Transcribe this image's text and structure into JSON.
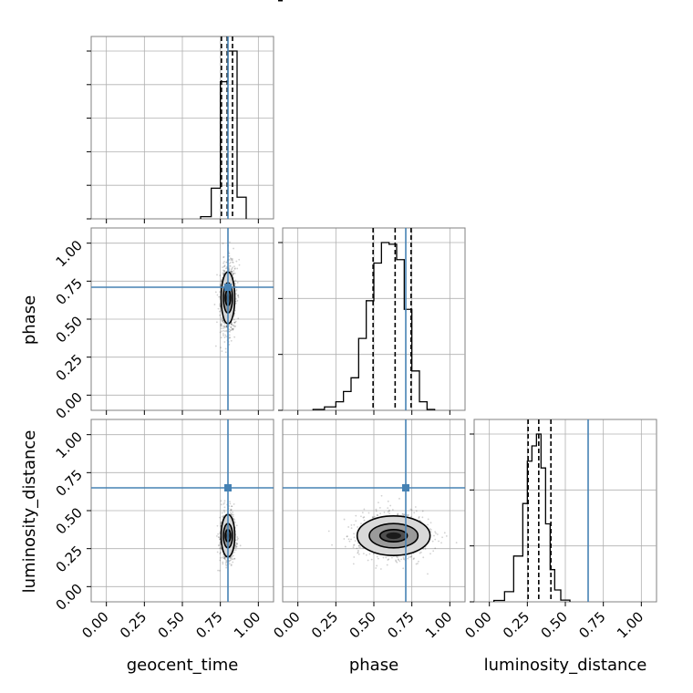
{
  "chart_data": {
    "type": "corner",
    "parameters": [
      "geocent_time",
      "phase",
      "luminosity_distance"
    ],
    "tick_labels": [
      "0.00",
      "0.25",
      "0.50",
      "0.75",
      "1.00"
    ],
    "axis_range": [
      -0.1,
      1.1
    ],
    "truth_values": [
      0.8,
      0.71,
      0.65
    ],
    "truth_color": "#4682b4",
    "grid": true,
    "histograms": [
      {
        "parameter": "geocent_time",
        "bin_edges": [
          0.62,
          0.69,
          0.75,
          0.8,
          0.86,
          0.92
        ],
        "counts": [
          0.012,
          0.17,
          0.76,
          0.93,
          0.12
        ],
        "quantiles": [
          0.757,
          0.795,
          0.83
        ]
      },
      {
        "parameter": "phase",
        "bin_edges": [
          0.1,
          0.175,
          0.25,
          0.3,
          0.35,
          0.4,
          0.45,
          0.5,
          0.55,
          0.6,
          0.65,
          0.7,
          0.75,
          0.8,
          0.85,
          0.9
        ],
        "counts": [
          0.005,
          0.02,
          0.05,
          0.11,
          0.19,
          0.42,
          0.64,
          0.86,
          0.98,
          0.97,
          0.88,
          0.59,
          0.23,
          0.05,
          0.005
        ],
        "quantiles": [
          0.495,
          0.64,
          0.745
        ]
      },
      {
        "parameter": "luminosity_distance",
        "bin_edges": [
          0.03,
          0.1,
          0.16,
          0.22,
          0.25,
          0.28,
          0.31,
          0.34,
          0.37,
          0.4,
          0.43,
          0.47,
          0.53
        ],
        "counts": [
          0.008,
          0.06,
          0.27,
          0.58,
          0.83,
          0.92,
          0.99,
          0.79,
          0.46,
          0.19,
          0.07,
          0.01
        ],
        "quantiles": [
          0.255,
          0.325,
          0.405
        ]
      }
    ],
    "density_panels": [
      {
        "x": "geocent_time",
        "y": "phase",
        "center": [
          0.8,
          0.64
        ],
        "sigma": [
          0.025,
          0.12
        ],
        "contours": [
          [
            0.018,
            0.05
          ],
          [
            0.03,
            0.1
          ],
          [
            0.045,
            0.17
          ]
        ]
      },
      {
        "x": "geocent_time",
        "y": "luminosity_distance",
        "center": [
          0.8,
          0.335
        ],
        "sigma": [
          0.025,
          0.08
        ],
        "contours": [
          [
            0.018,
            0.04
          ],
          [
            0.03,
            0.08
          ],
          [
            0.045,
            0.14
          ]
        ]
      },
      {
        "x": "phase",
        "y": "luminosity_distance",
        "center": [
          0.63,
          0.335
        ],
        "sigma": [
          0.12,
          0.08
        ],
        "contours": [
          [
            0.09,
            0.04
          ],
          [
            0.16,
            0.08
          ],
          [
            0.24,
            0.13
          ]
        ]
      }
    ]
  }
}
